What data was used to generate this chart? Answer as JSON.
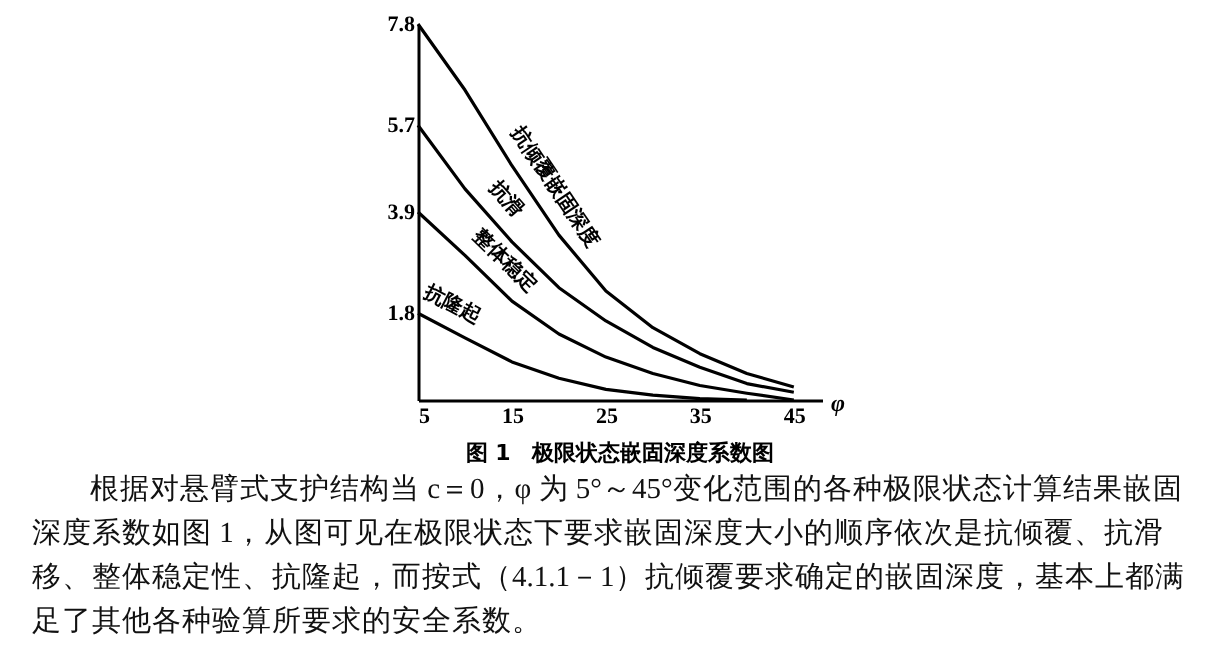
{
  "chart_data": {
    "type": "line",
    "title": "图 1　极限状态嵌固深度系数图",
    "xlabel": "φ",
    "x": [
      5,
      10,
      15,
      20,
      25,
      30,
      35,
      40,
      45
    ],
    "series": [
      {
        "name": "抗倾覆嵌固深度",
        "color": "#000000",
        "values": [
          7.8,
          6.43,
          4.86,
          3.42,
          2.26,
          1.5,
          0.96,
          0.55,
          0.27
        ]
      },
      {
        "name": "抗滑",
        "color": "#000000",
        "values": [
          5.7,
          4.38,
          3.28,
          2.33,
          1.64,
          1.09,
          0.68,
          0.34,
          0.16
        ]
      },
      {
        "name": "整体稳定",
        "color": "#000000",
        "values": [
          3.9,
          3.0,
          2.05,
          1.37,
          0.89,
          0.55,
          0.3,
          0.14,
          0
        ]
      },
      {
        "name": "抗隆起",
        "color": "#000000",
        "values": [
          1.8,
          1.29,
          0.79,
          0.45,
          0.22,
          0.1,
          0.03,
          0,
          null
        ]
      }
    ],
    "xlim": [
      5,
      48
    ],
    "xticks": [
      5,
      15,
      25,
      35,
      45
    ],
    "ylim": [
      0,
      7.8
    ],
    "yticks": [
      1.8,
      3.9,
      5.7,
      7.8
    ],
    "grid": false,
    "legend": false,
    "marker": "none",
    "line_style": "solid",
    "annotations": [
      "根据对悬臂式支护结构当 c＝0，φ 为 5°～45°变化范围的各种极限状态计算结果嵌固深度系数如图 1，从图可见在极限状态下要求嵌固深度大小的顺序依次是抗倾覆、抗滑移、整体稳定性、抗隆起，而按式（4.1.1－1）抗倾覆要求确定的嵌固深度，基本上都满足了其他各种验算所要求的安全系数。"
    ]
  }
}
